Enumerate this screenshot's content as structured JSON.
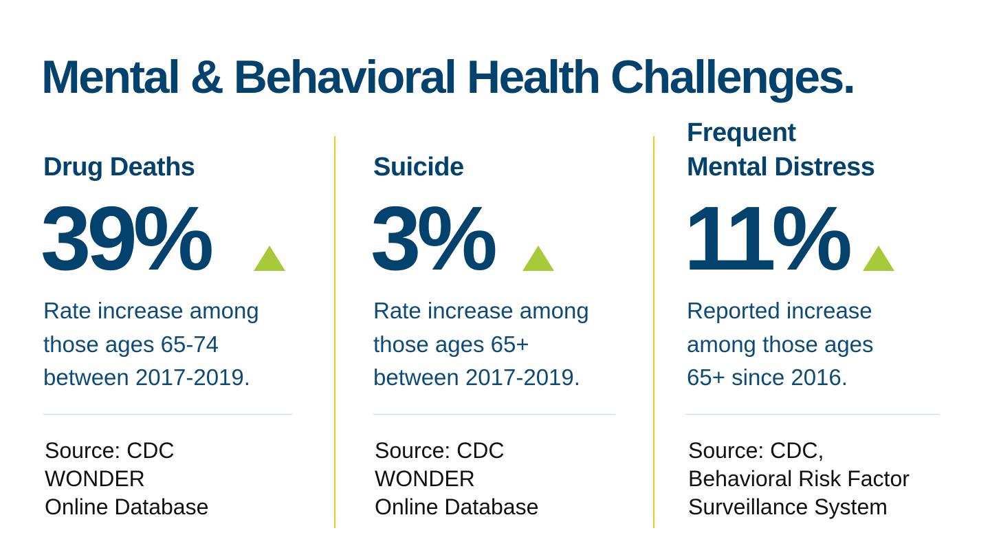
{
  "title": "Mental & Behavioral Health Challenges.",
  "colors": {
    "navy": "#04426e",
    "accent_green": "#a8c93a",
    "divider_yellow": "#f2c12e"
  },
  "stats": [
    {
      "heading_lines": [
        "Drug Deaths"
      ],
      "value": "39%",
      "trend_icon": "up-triangle-icon",
      "description_lines": [
        "Rate increase among",
        "those ages 65-74",
        "between 2017-2019."
      ],
      "source_lines": [
        "Source: CDC",
        "WONDER",
        "Online Database"
      ]
    },
    {
      "heading_lines": [
        "Suicide"
      ],
      "value": "3%",
      "trend_icon": "up-triangle-icon",
      "description_lines": [
        "Rate increase among",
        "those ages 65+",
        "between 2017-2019."
      ],
      "source_lines": [
        "Source: CDC",
        "WONDER",
        "Online Database"
      ]
    },
    {
      "heading_lines": [
        "Frequent",
        "Mental Distress"
      ],
      "value": "11%",
      "trend_icon": "up-triangle-icon",
      "description_lines": [
        "Reported increase",
        "among those ages",
        "65+ since 2016."
      ],
      "source_lines": [
        "Source: CDC,",
        "Behavioral Risk Factor",
        "Surveillance System"
      ]
    }
  ]
}
